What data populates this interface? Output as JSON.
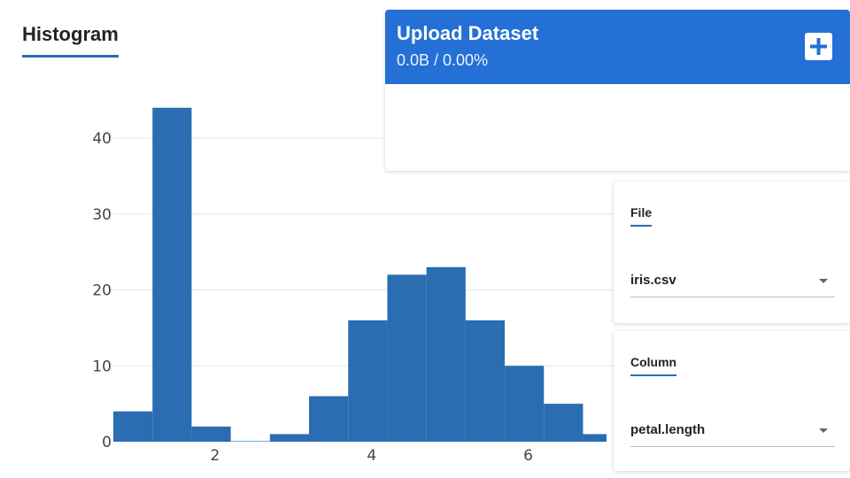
{
  "histogram": {
    "title": "Histogram"
  },
  "upload": {
    "title": "Upload Dataset",
    "progress": "0.0B / 0.00%",
    "add_icon": "plus-icon",
    "accent_color": "#2470d6"
  },
  "file_panel": {
    "label": "File",
    "selected": "iris.csv"
  },
  "column_panel": {
    "label": "Column",
    "selected": "petal.length"
  },
  "chart_data": {
    "type": "bar",
    "title": "",
    "xlabel": "",
    "ylabel": "",
    "bar_color": "#2a6db1",
    "grid": true,
    "xlim": [
      0.7,
      7.0
    ],
    "ylim": [
      0,
      47
    ],
    "xticks": [
      2,
      4,
      6
    ],
    "yticks": [
      0,
      10,
      20,
      30,
      40
    ],
    "bins": [
      {
        "start": 0.7,
        "end": 1.2,
        "count": 4
      },
      {
        "start": 1.2,
        "end": 1.7,
        "count": 44
      },
      {
        "start": 1.7,
        "end": 2.2,
        "count": 2
      },
      {
        "start": 2.2,
        "end": 2.7,
        "count": 0
      },
      {
        "start": 2.7,
        "end": 3.2,
        "count": 1
      },
      {
        "start": 3.2,
        "end": 3.7,
        "count": 6
      },
      {
        "start": 3.7,
        "end": 4.2,
        "count": 16
      },
      {
        "start": 4.2,
        "end": 4.7,
        "count": 22
      },
      {
        "start": 4.7,
        "end": 5.2,
        "count": 23
      },
      {
        "start": 5.2,
        "end": 5.7,
        "count": 16
      },
      {
        "start": 5.7,
        "end": 6.2,
        "count": 10
      },
      {
        "start": 6.2,
        "end": 6.7,
        "count": 5
      },
      {
        "start": 6.7,
        "end": 7.2,
        "count": 1
      }
    ]
  }
}
